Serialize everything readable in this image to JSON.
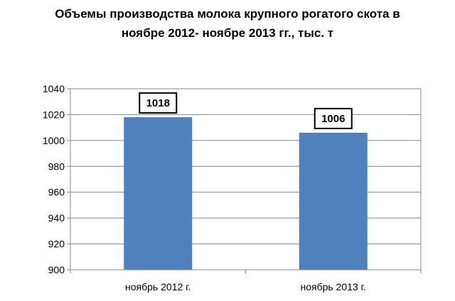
{
  "chart_data": {
    "type": "bar",
    "title_lines": [
      "Объемы производства молока крупного рогатого скота в",
      "ноябре 2012-  ноябре 2013 гг., тыс. т"
    ],
    "categories": [
      "ноябрь 2012 г.",
      "ноябрь 2013 г."
    ],
    "values": [
      1018,
      1006
    ],
    "data_labels": [
      "1018",
      "1006"
    ],
    "ylim": [
      900,
      1040
    ],
    "yticks": [
      900,
      920,
      940,
      960,
      980,
      1000,
      1020,
      1040
    ],
    "xlabel": "",
    "ylabel": "",
    "grid": true,
    "legend": "none",
    "bar_color": "#4f81bd",
    "grid_color": "#878787"
  }
}
